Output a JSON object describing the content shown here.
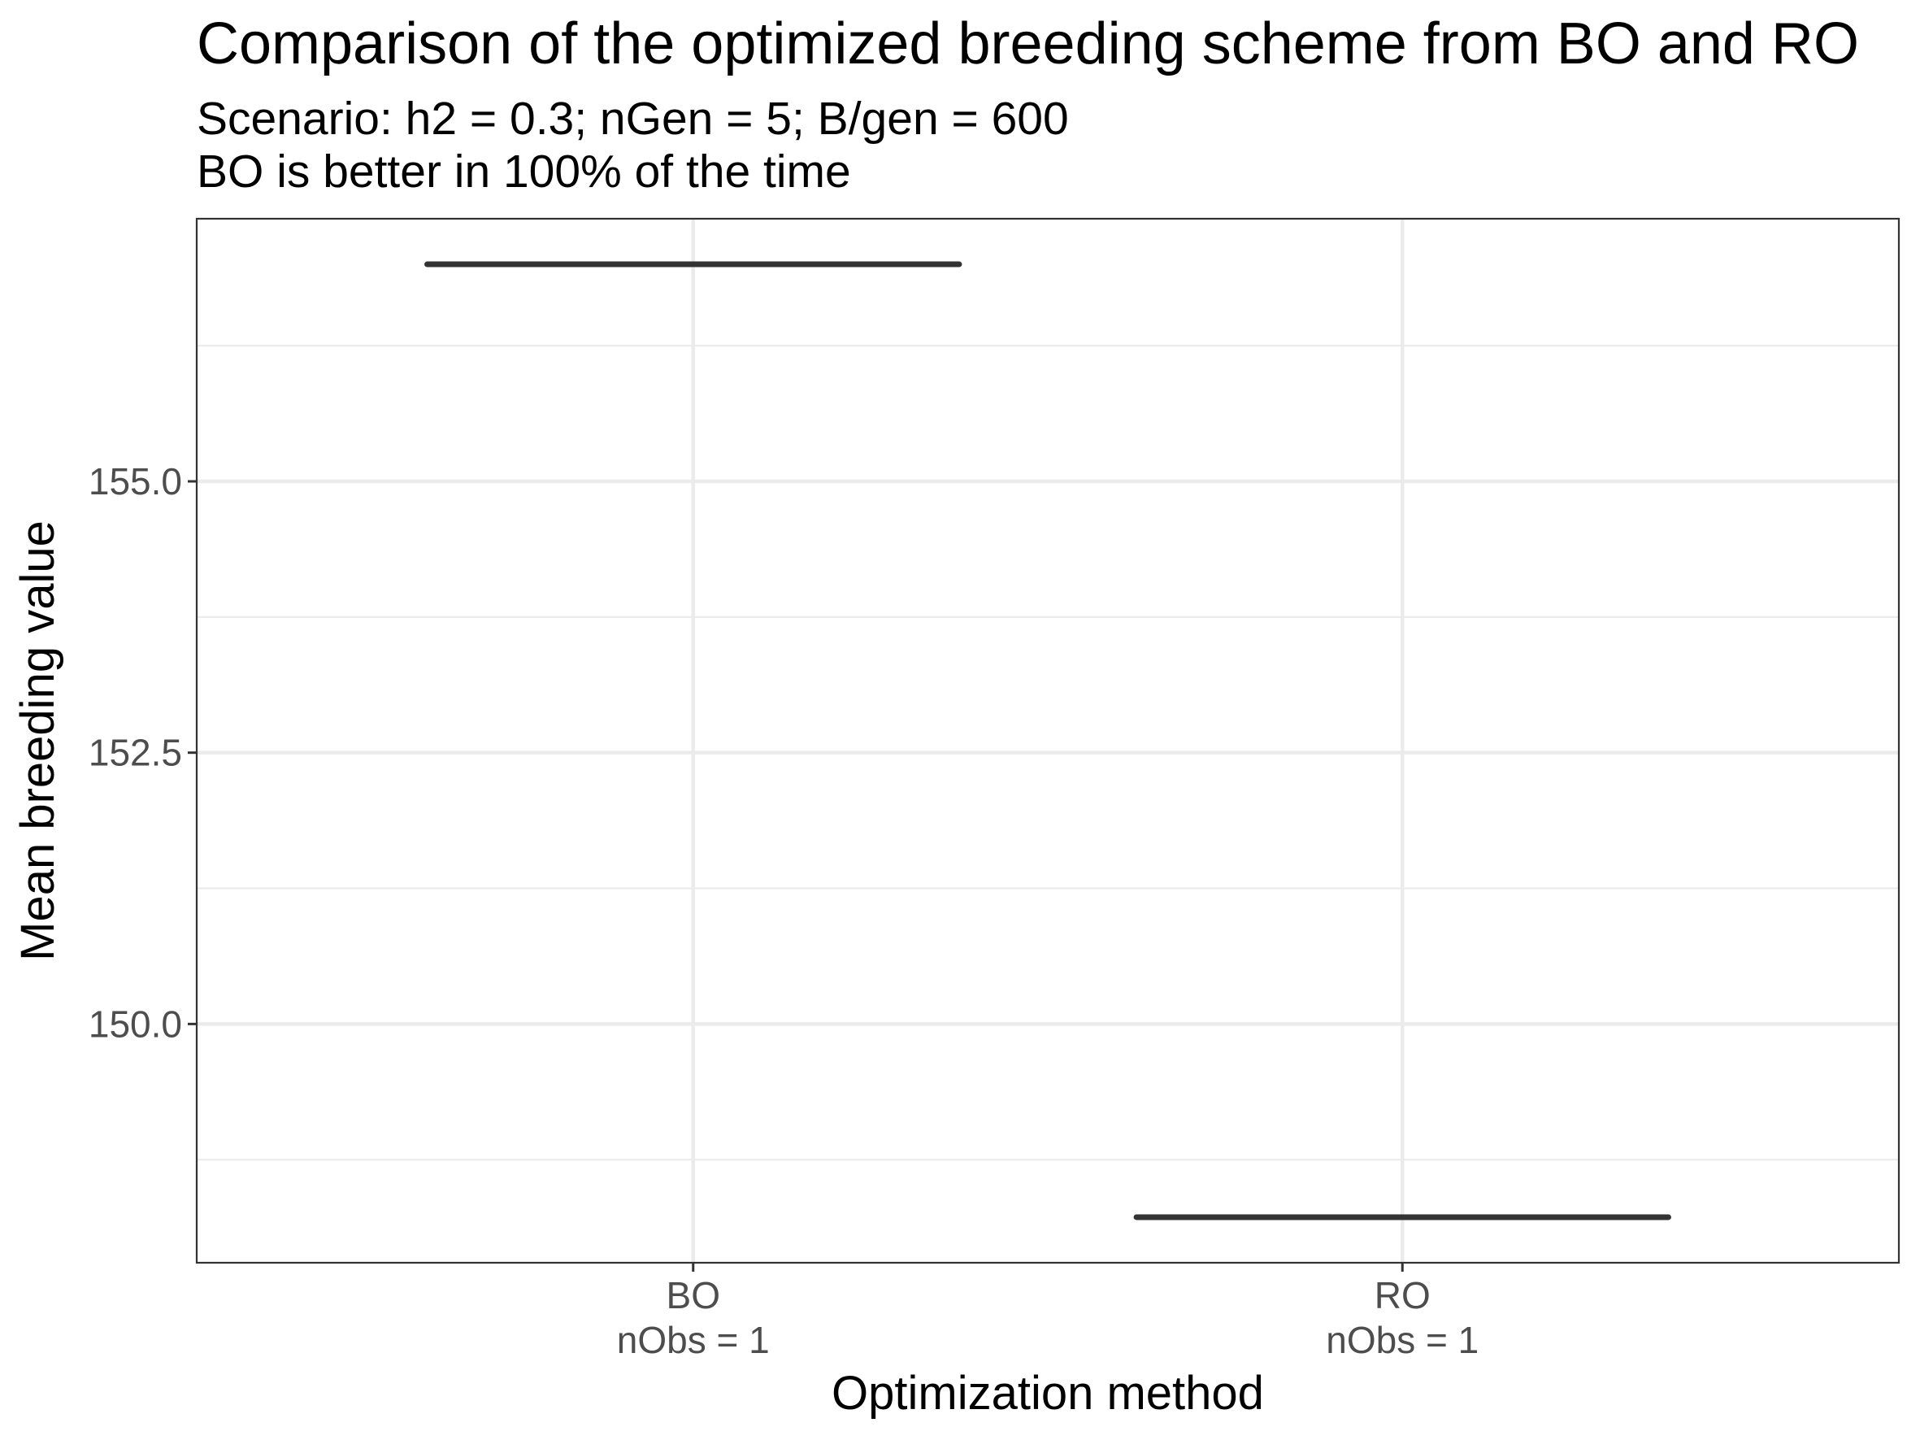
{
  "chart_data": {
    "type": "boxplot",
    "title": "Comparison of the optimized breeding scheme from BO and RO",
    "subtitle_lines": [
      "Scenario: h2 = 0.3; nGen = 5; B/gen = 600",
      "BO is better in 100% of the time"
    ],
    "xlabel": "Optimization method",
    "ylabel": "Mean breeding value",
    "categories": [
      "BO",
      "RO"
    ],
    "category_sublabels": [
      "nObs = 1",
      "nObs = 1"
    ],
    "values": [
      157.0,
      148.22
    ],
    "ylim": [
      147.8,
      157.42
    ],
    "yticks": [
      150.0,
      152.5,
      155.0
    ],
    "ytick_labels": [
      "150.0",
      "152.5",
      "155.0"
    ],
    "yminor": [
      148.75,
      151.25,
      153.75,
      156.25
    ],
    "grid": true,
    "legend": "none"
  }
}
